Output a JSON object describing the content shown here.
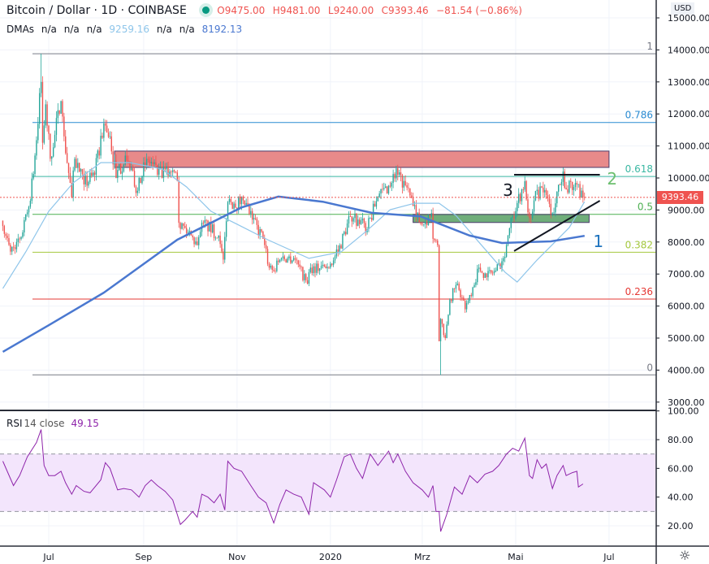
{
  "header": {
    "symbol": "Bitcoin / Dollar · 1D · COINBASE",
    "open": "O9475.00",
    "high": "H9481.00",
    "low": "L9240.00",
    "close": "C9393.46",
    "change": "−81.54 (−0.86%)",
    "status_color": "#089981"
  },
  "dmas": {
    "label": "DMAs",
    "v1": "n/a",
    "v2": "n/a",
    "v3": "n/a",
    "v4": "9259.16",
    "v5": "n/a",
    "v6": "n/a",
    "v7": "8192.13"
  },
  "rsi_legend": {
    "label": "RSI",
    "params": "14 close",
    "value": "49.15"
  },
  "price_axis": {
    "currency": "USD",
    "last_price": "9393.46",
    "ticks": [
      "15000.00",
      "14000.00",
      "13000.00",
      "12000.00",
      "11000.00",
      "10000.00",
      "9000.00",
      "8000.00",
      "7000.00",
      "6000.00",
      "5000.00",
      "4000.00",
      "3000.00"
    ]
  },
  "rsi_axis": {
    "ticks": [
      "100.00",
      "80.00",
      "60.00",
      "40.00",
      "20.00"
    ]
  },
  "time_axis": {
    "labels": [
      {
        "date": "2019-07-01",
        "text": "Jul"
      },
      {
        "date": "2019-09-01",
        "text": "Sep"
      },
      {
        "date": "2019-11-01",
        "text": "Nov"
      },
      {
        "date": "2020-01-01",
        "text": "2020"
      },
      {
        "date": "2020-03-01",
        "text": "Mrz"
      },
      {
        "date": "2020-05-01",
        "text": "Mai"
      },
      {
        "date": "2020-07-01",
        "text": "Jul"
      }
    ]
  },
  "colors": {
    "up": "#26a69a",
    "down": "#ef5350",
    "dma50": "#8ec5ea",
    "dma200": "#4a78d0",
    "rsi": "#8e24aa",
    "rsi_band": "#f3e5fc"
  },
  "chart_data": [
    {
      "type": "candlestick",
      "symbol": "Bitcoin / Dollar",
      "interval": "1D",
      "ylim": [
        2600,
        15400
      ],
      "close_path": [
        [
          "2019-06-01",
          8500
        ],
        [
          "2019-06-06",
          7700
        ],
        [
          "2019-06-10",
          8000
        ],
        [
          "2019-06-14",
          8300
        ],
        [
          "2019-06-18",
          9100
        ],
        [
          "2019-06-22",
          10700
        ],
        [
          "2019-06-26",
          13000
        ],
        [
          "2019-06-27",
          11100
        ],
        [
          "2019-06-29",
          12300
        ],
        [
          "2019-07-02",
          10600
        ],
        [
          "2019-07-09",
          12400
        ],
        [
          "2019-07-11",
          11300
        ],
        [
          "2019-07-16",
          9400
        ],
        [
          "2019-07-18",
          10600
        ],
        [
          "2019-07-24",
          9800
        ],
        [
          "2019-07-31",
          10100
        ],
        [
          "2019-08-06",
          11700
        ],
        [
          "2019-08-10",
          11300
        ],
        [
          "2019-08-14",
          10000
        ],
        [
          "2019-08-20",
          10700
        ],
        [
          "2019-08-28",
          9600
        ],
        [
          "2019-09-03",
          10600
        ],
        [
          "2019-09-10",
          10100
        ],
        [
          "2019-09-18",
          10200
        ],
        [
          "2019-09-23",
          9900
        ],
        [
          "2019-09-24",
          8600
        ],
        [
          "2019-09-30",
          8300
        ],
        [
          "2019-10-06",
          7900
        ],
        [
          "2019-10-10",
          8600
        ],
        [
          "2019-10-20",
          8200
        ],
        [
          "2019-10-23",
          7450
        ],
        [
          "2019-10-25",
          8650
        ],
        [
          "2019-10-26",
          9250
        ],
        [
          "2019-10-30",
          9200
        ],
        [
          "2019-11-05",
          9300
        ],
        [
          "2019-11-11",
          8700
        ],
        [
          "2019-11-18",
          8100
        ],
        [
          "2019-11-22",
          7200
        ],
        [
          "2019-11-25",
          7100
        ],
        [
          "2019-11-30",
          7500
        ],
        [
          "2019-12-08",
          7500
        ],
        [
          "2019-12-17",
          6700
        ],
        [
          "2019-12-19",
          7200
        ],
        [
          "2019-12-31",
          7200
        ],
        [
          "2020-01-06",
          7700
        ],
        [
          "2020-01-14",
          8800
        ],
        [
          "2020-01-19",
          8700
        ],
        [
          "2020-01-25",
          8400
        ],
        [
          "2020-02-01",
          9400
        ],
        [
          "2020-02-10",
          9850
        ],
        [
          "2020-02-13",
          10300
        ],
        [
          "2020-02-17",
          9700
        ],
        [
          "2020-02-20",
          9700
        ],
        [
          "2020-02-26",
          8800
        ],
        [
          "2020-03-01",
          8550
        ],
        [
          "2020-03-07",
          8900
        ],
        [
          "2020-03-08",
          8100
        ],
        [
          "2020-03-11",
          7900
        ],
        [
          "2020-03-12",
          4900
        ],
        [
          "2020-03-13",
          5600
        ],
        [
          "2020-03-16",
          5000
        ],
        [
          "2020-03-19",
          6200
        ],
        [
          "2020-03-24",
          6700
        ],
        [
          "2020-03-29",
          5900
        ],
        [
          "2020-04-07",
          7200
        ],
        [
          "2020-04-12",
          6900
        ],
        [
          "2020-04-18",
          7100
        ],
        [
          "2020-04-23",
          7500
        ],
        [
          "2020-04-29",
          8800
        ],
        [
          "2020-05-07",
          9900
        ],
        [
          "2020-05-10",
          8750
        ],
        [
          "2020-05-13",
          9300
        ],
        [
          "2020-05-18",
          9700
        ],
        [
          "2020-05-25",
          8900
        ],
        [
          "2020-06-01",
          10200
        ],
        [
          "2020-06-03",
          9650
        ],
        [
          "2020-06-10",
          9800
        ],
        [
          "2020-06-14",
          9400
        ],
        [
          "2020-06-15",
          9393.46
        ]
      ],
      "extremes": {
        "high": [
          "2019-06-26",
          13880
        ],
        "low": [
          "2020-03-13",
          3850
        ]
      },
      "dma50": [
        [
          "2019-06-01",
          6550
        ],
        [
          "2019-06-16",
          7690
        ],
        [
          "2019-07-01",
          8960
        ],
        [
          "2019-07-17",
          9850
        ],
        [
          "2019-08-04",
          10480
        ],
        [
          "2019-08-23",
          10480
        ],
        [
          "2019-09-13",
          10280
        ],
        [
          "2019-09-29",
          9720
        ],
        [
          "2019-10-15",
          8960
        ],
        [
          "2019-10-31",
          8580
        ],
        [
          "2019-11-21",
          8070
        ],
        [
          "2019-12-18",
          7490
        ],
        [
          "2020-01-08",
          7690
        ],
        [
          "2020-01-24",
          8320
        ],
        [
          "2020-02-09",
          9010
        ],
        [
          "2020-02-25",
          9210
        ],
        [
          "2020-03-12",
          9210
        ],
        [
          "2020-03-23",
          8830
        ],
        [
          "2020-04-08",
          7940
        ],
        [
          "2020-04-24",
          7060
        ],
        [
          "2020-05-02",
          6750
        ],
        [
          "2020-05-15",
          7440
        ],
        [
          "2020-06-05",
          8450
        ],
        [
          "2020-06-15",
          9259.16
        ]
      ],
      "dma200": [
        [
          "2019-06-01",
          4570
        ],
        [
          "2019-07-01",
          5400
        ],
        [
          "2019-08-06",
          6420
        ],
        [
          "2019-09-23",
          8070
        ],
        [
          "2019-11-04",
          9080
        ],
        [
          "2019-11-28",
          9420
        ],
        [
          "2019-12-27",
          9260
        ],
        [
          "2020-01-28",
          8910
        ],
        [
          "2020-02-29",
          8800
        ],
        [
          "2020-04-01",
          8200
        ],
        [
          "2020-04-22",
          7970
        ],
        [
          "2020-05-24",
          8020
        ],
        [
          "2020-06-15",
          8192.13
        ]
      ],
      "fibonacci": {
        "high": 13880,
        "low": 3850,
        "levels": [
          {
            "ratio": 1,
            "label": "1",
            "color": "#787b86"
          },
          {
            "ratio": 0.786,
            "label": "0.786",
            "color": "#2a8bd2"
          },
          {
            "ratio": 0.618,
            "label": "0.618",
            "color": "#3bb8a3"
          },
          {
            "ratio": 0.5,
            "label": "0.5",
            "color": "#4caf50"
          },
          {
            "ratio": 0.382,
            "label": "0.382",
            "color": "#a4c83e"
          },
          {
            "ratio": 0.236,
            "label": "0.236",
            "color": "#e53935"
          },
          {
            "ratio": 0,
            "label": "0",
            "color": "#787b86"
          }
        ]
      },
      "zones": [
        {
          "from": "2019-08-13",
          "to": "2020-07-01",
          "low": 10330,
          "high": 10840,
          "color": "#e88a8a"
        },
        {
          "from": "2020-02-24",
          "to": "2020-06-18",
          "low": 8610,
          "high": 8860,
          "color": "#6fae7a"
        }
      ],
      "lines": [
        {
          "from": [
            "2020-04-30",
            10100
          ],
          "to": [
            "2020-06-25",
            10100
          ],
          "color": "#131722"
        },
        {
          "from": [
            "2020-04-30",
            7720
          ],
          "to": [
            "2020-06-25",
            9290
          ],
          "color": "#131722"
        }
      ],
      "annotations": [
        {
          "text": "3",
          "date": "2020-04-26",
          "price": 9640,
          "color": "#131722"
        },
        {
          "text": "2",
          "date": "2020-07-03",
          "price": 10000,
          "color": "#6dbf6f"
        },
        {
          "text": "1",
          "date": "2020-06-24",
          "price": 8050,
          "color": "#1e73be"
        }
      ]
    },
    {
      "type": "line",
      "title": "RSI 14 close",
      "ylim": [
        7,
        100
      ],
      "bands": [
        30,
        70
      ],
      "values": [
        [
          "2019-06-01",
          65
        ],
        [
          "2019-06-08",
          48
        ],
        [
          "2019-06-12",
          55
        ],
        [
          "2019-06-17",
          68
        ],
        [
          "2019-06-23",
          78
        ],
        [
          "2019-06-26",
          87
        ],
        [
          "2019-06-28",
          62
        ],
        [
          "2019-07-01",
          55
        ],
        [
          "2019-07-05",
          55
        ],
        [
          "2019-07-09",
          58
        ],
        [
          "2019-07-12",
          50
        ],
        [
          "2019-07-16",
          42
        ],
        [
          "2019-07-19",
          48
        ],
        [
          "2019-07-24",
          44
        ],
        [
          "2019-07-28",
          43
        ],
        [
          "2019-08-04",
          52
        ],
        [
          "2019-08-07",
          64
        ],
        [
          "2019-08-10",
          60
        ],
        [
          "2019-08-15",
          45
        ],
        [
          "2019-08-19",
          46
        ],
        [
          "2019-08-24",
          45
        ],
        [
          "2019-08-29",
          40
        ],
        [
          "2019-09-02",
          48
        ],
        [
          "2019-09-06",
          52
        ],
        [
          "2019-09-10",
          48
        ],
        [
          "2019-09-15",
          44
        ],
        [
          "2019-09-20",
          38
        ],
        [
          "2019-09-25",
          21
        ],
        [
          "2019-09-28",
          24
        ],
        [
          "2019-10-03",
          30
        ],
        [
          "2019-10-06",
          26
        ],
        [
          "2019-10-09",
          42
        ],
        [
          "2019-10-13",
          40
        ],
        [
          "2019-10-17",
          36
        ],
        [
          "2019-10-21",
          42
        ],
        [
          "2019-10-24",
          31
        ],
        [
          "2019-10-26",
          65
        ],
        [
          "2019-10-30",
          60
        ],
        [
          "2019-11-04",
          58
        ],
        [
          "2019-11-10",
          48
        ],
        [
          "2019-11-15",
          40
        ],
        [
          "2019-11-20",
          36
        ],
        [
          "2019-11-25",
          22
        ],
        [
          "2019-11-29",
          35
        ],
        [
          "2019-12-03",
          45
        ],
        [
          "2019-12-08",
          42
        ],
        [
          "2019-12-13",
          40
        ],
        [
          "2019-12-18",
          28
        ],
        [
          "2019-12-21",
          50
        ],
        [
          "2019-12-28",
          45
        ],
        [
          "2020-01-01",
          40
        ],
        [
          "2020-01-05",
          52
        ],
        [
          "2020-01-10",
          68
        ],
        [
          "2020-01-14",
          70
        ],
        [
          "2020-01-18",
          60
        ],
        [
          "2020-01-22",
          53
        ],
        [
          "2020-01-27",
          70
        ],
        [
          "2020-02-01",
          62
        ],
        [
          "2020-02-08",
          72
        ],
        [
          "2020-02-11",
          64
        ],
        [
          "2020-02-14",
          70
        ],
        [
          "2020-02-19",
          58
        ],
        [
          "2020-02-24",
          50
        ],
        [
          "2020-03-01",
          45
        ],
        [
          "2020-03-05",
          40
        ],
        [
          "2020-03-08",
          48
        ],
        [
          "2020-03-10",
          30
        ],
        [
          "2020-03-12",
          30
        ],
        [
          "2020-03-13",
          16
        ],
        [
          "2020-03-17",
          28
        ],
        [
          "2020-03-22",
          47
        ],
        [
          "2020-03-27",
          42
        ],
        [
          "2020-04-01",
          55
        ],
        [
          "2020-04-06",
          50
        ],
        [
          "2020-04-11",
          56
        ],
        [
          "2020-04-16",
          58
        ],
        [
          "2020-04-20",
          62
        ],
        [
          "2020-04-25",
          70
        ],
        [
          "2020-04-29",
          74
        ],
        [
          "2020-05-03",
          72
        ],
        [
          "2020-05-07",
          81
        ],
        [
          "2020-05-10",
          55
        ],
        [
          "2020-05-12",
          53
        ],
        [
          "2020-05-15",
          66
        ],
        [
          "2020-05-18",
          60
        ],
        [
          "2020-05-21",
          63
        ],
        [
          "2020-05-25",
          46
        ],
        [
          "2020-05-28",
          55
        ],
        [
          "2020-06-01",
          62
        ],
        [
          "2020-06-03",
          55
        ],
        [
          "2020-06-07",
          57
        ],
        [
          "2020-06-10",
          58
        ],
        [
          "2020-06-11",
          47
        ],
        [
          "2020-06-14",
          49.15
        ]
      ]
    }
  ]
}
